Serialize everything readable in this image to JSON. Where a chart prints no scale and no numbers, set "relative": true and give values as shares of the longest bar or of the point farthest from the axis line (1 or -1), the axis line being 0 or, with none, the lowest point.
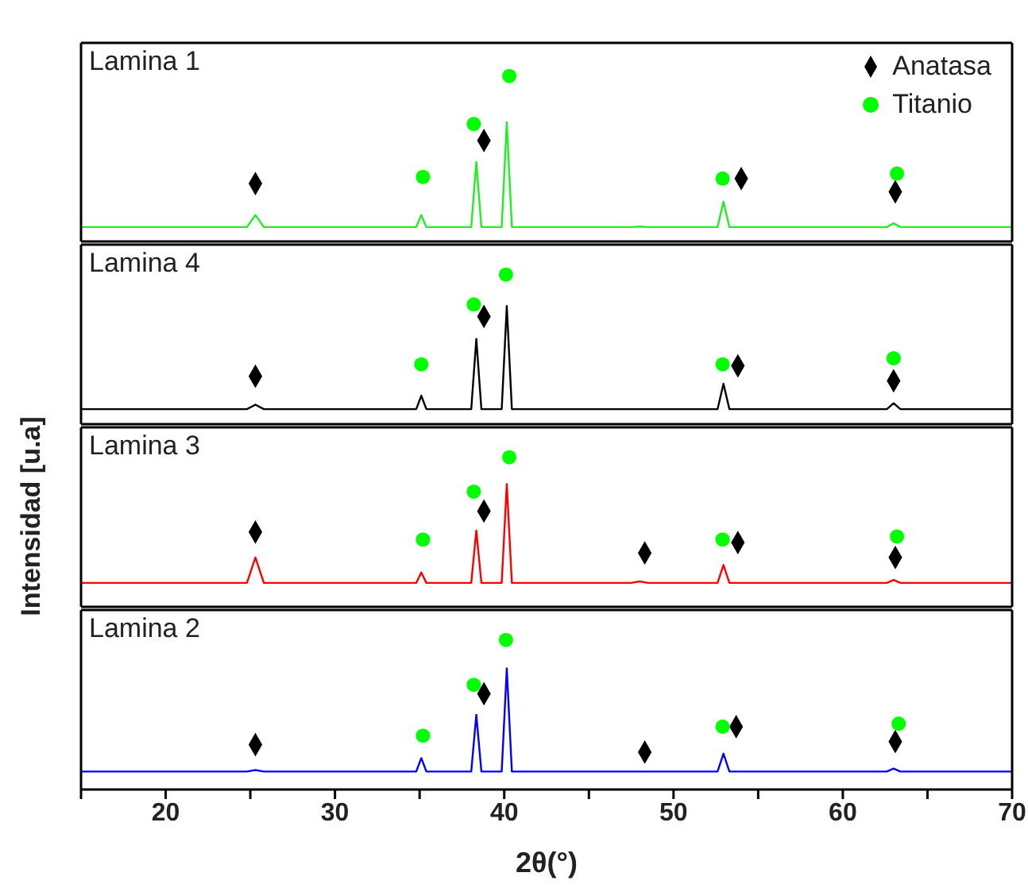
{
  "chart_data": [
    {
      "type": "line",
      "title": "Lamina 1",
      "relative": true,
      "xlim": [
        15,
        70
      ],
      "tick_labels": false,
      "legend": "top right",
      "series": [
        {
          "color": "#22ee22",
          "marker": "none",
          "x": [
            15,
            24.8,
            25.3,
            25.8,
            34.8,
            35.1,
            35.4,
            38.05,
            38.35,
            38.65,
            39.85,
            40.15,
            40.45,
            47.5,
            48.0,
            48.5,
            52.6,
            52.95,
            53.3,
            62.6,
            63.0,
            63.4,
            70
          ],
          "values": [
            0.087,
            0.087,
            0.16,
            0.087,
            0.087,
            0.16,
            0.087,
            0.087,
            0.48,
            0.087,
            0.087,
            0.72,
            0.087,
            0.087,
            0.09,
            0.087,
            0.087,
            0.24,
            0.087,
            0.087,
            0.11,
            0.087,
            0.087
          ]
        },
        {
          "type": "scatter",
          "name": "Anatasa",
          "color": "#000000",
          "marker": "diamond",
          "x": [
            25.3,
            38.8,
            54.0,
            63.1
          ],
          "values": [
            0.35,
            0.61,
            0.38,
            0.3
          ]
        },
        {
          "type": "scatter",
          "name": "Titanio",
          "color": "#00ff00",
          "marker": "circle",
          "x": [
            35.2,
            38.2,
            40.3,
            52.9,
            63.2
          ],
          "values": [
            0.39,
            0.71,
            1.0,
            0.38,
            0.41
          ]
        }
      ]
    },
    {
      "type": "line",
      "title": "Lamina 4",
      "relative": true,
      "xlim": [
        15,
        70
      ],
      "tick_labels": false,
      "series": [
        {
          "color": "#000000",
          "marker": "none",
          "x": [
            15,
            24.8,
            25.3,
            25.8,
            34.8,
            35.1,
            35.4,
            38.05,
            38.35,
            38.65,
            39.85,
            40.15,
            40.45,
            52.6,
            52.95,
            53.3,
            62.6,
            63.0,
            63.4,
            70
          ],
          "values": [
            0.1,
            0.1,
            0.13,
            0.1,
            0.1,
            0.19,
            0.1,
            0.1,
            0.57,
            0.1,
            0.1,
            0.79,
            0.1,
            0.1,
            0.27,
            0.1,
            0.1,
            0.14,
            0.1,
            0.1
          ]
        },
        {
          "type": "scatter",
          "color": "#000000",
          "marker": "diamond",
          "x": [
            25.3,
            38.8,
            53.8,
            63.0
          ],
          "values": [
            0.32,
            0.72,
            0.39,
            0.29
          ]
        },
        {
          "type": "scatter",
          "color": "#00ff00",
          "marker": "circle",
          "x": [
            35.1,
            38.2,
            40.1,
            52.9,
            63.0
          ],
          "values": [
            0.4,
            0.8,
            1.0,
            0.4,
            0.44
          ]
        }
      ]
    },
    {
      "type": "line",
      "title": "Lamina 3",
      "ylabel": "Intensidad [u.a]",
      "relative": true,
      "xlim": [
        15,
        70
      ],
      "tick_labels": false,
      "series": [
        {
          "color": "#ff0000",
          "marker": "none",
          "x": [
            15,
            24.8,
            25.3,
            25.8,
            34.8,
            35.1,
            35.4,
            38.05,
            38.35,
            38.65,
            39.85,
            40.15,
            40.45,
            47.5,
            48.0,
            48.5,
            52.6,
            52.95,
            53.3,
            62.6,
            63.0,
            63.4,
            70
          ],
          "values": [
            0.16,
            0.16,
            0.33,
            0.16,
            0.16,
            0.23,
            0.16,
            0.16,
            0.51,
            0.16,
            0.16,
            0.82,
            0.16,
            0.16,
            0.17,
            0.16,
            0.16,
            0.28,
            0.16,
            0.16,
            0.18,
            0.16,
            0.16
          ]
        },
        {
          "type": "scatter",
          "color": "#000000",
          "marker": "diamond",
          "x": [
            25.3,
            38.8,
            48.3,
            53.8,
            63.1
          ],
          "values": [
            0.5,
            0.64,
            0.36,
            0.43,
            0.33
          ]
        },
        {
          "type": "scatter",
          "color": "#00ff00",
          "marker": "circle",
          "x": [
            35.2,
            38.2,
            40.3,
            52.9,
            63.2
          ],
          "values": [
            0.45,
            0.77,
            1.0,
            0.45,
            0.47
          ]
        }
      ]
    },
    {
      "type": "line",
      "title": "Lamina 2",
      "xlabel": "2θ(°)",
      "relative": true,
      "xlim": [
        15,
        70
      ],
      "xticks": [
        {
          "value": 15,
          "label": null
        },
        20,
        {
          "value": 25,
          "label": null
        },
        30,
        {
          "value": 35,
          "label": null
        },
        40,
        {
          "value": 45,
          "label": null
        },
        50,
        {
          "value": 55,
          "label": null
        },
        60,
        {
          "value": 65,
          "label": null
        },
        70
      ],
      "tick_labels": "x",
      "series": [
        {
          "color": "#0000ff",
          "marker": "none",
          "x": [
            15,
            24.8,
            25.3,
            25.8,
            34.8,
            35.1,
            35.4,
            38.05,
            38.35,
            38.65,
            39.85,
            40.15,
            40.45,
            52.6,
            52.95,
            53.3,
            62.6,
            63.0,
            63.4,
            70
          ],
          "values": [
            0.12,
            0.12,
            0.13,
            0.12,
            0.12,
            0.21,
            0.12,
            0.12,
            0.5,
            0.12,
            0.12,
            0.81,
            0.12,
            0.12,
            0.24,
            0.12,
            0.12,
            0.14,
            0.12,
            0.12
          ]
        },
        {
          "type": "scatter",
          "color": "#000000",
          "marker": "diamond",
          "x": [
            25.3,
            38.8,
            48.3,
            53.7,
            63.1
          ],
          "values": [
            0.3,
            0.64,
            0.25,
            0.42,
            0.32
          ]
        },
        {
          "type": "scatter",
          "color": "#00ff00",
          "marker": "circle",
          "x": [
            35.2,
            38.2,
            40.1,
            52.9,
            63.3
          ],
          "values": [
            0.36,
            0.7,
            1.0,
            0.42,
            0.44
          ]
        }
      ]
    }
  ]
}
